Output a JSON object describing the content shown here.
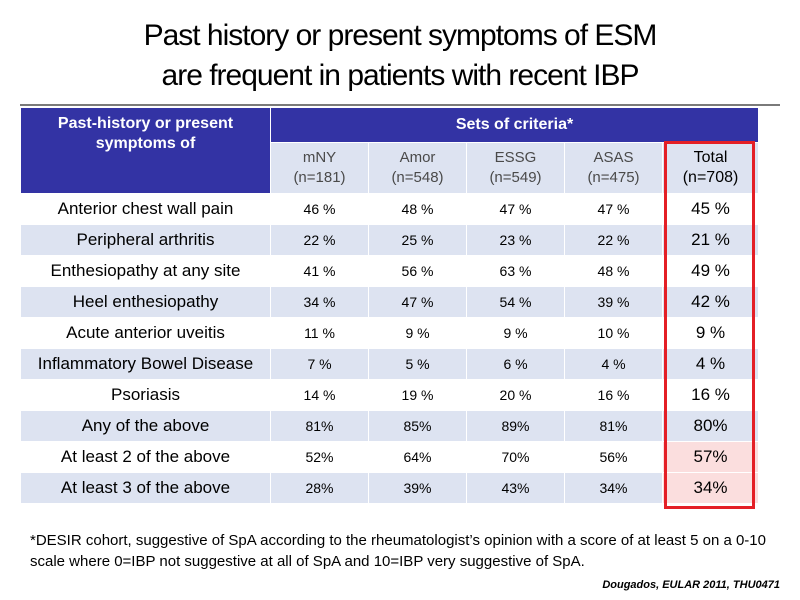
{
  "title": {
    "line1": "Past history or present symptoms of ESM",
    "line2": "are frequent in patients with recent IBP"
  },
  "table": {
    "row_header_label": "Past-history or present symptoms of",
    "group_header": "Sets of criteria*",
    "columns": [
      {
        "name": "mNY",
        "n": "(n=181)"
      },
      {
        "name": "Amor",
        "n": "(n=548)"
      },
      {
        "name": "ESSG",
        "n": "(n=549)"
      },
      {
        "name": "ASAS",
        "n": "(n=475)"
      },
      {
        "name": "Total",
        "n": "(n=708)"
      }
    ],
    "rows": [
      {
        "label": "Anterior chest wall pain",
        "values": [
          "46 %",
          "48 %",
          "47 %",
          "47 %",
          "45 %"
        ]
      },
      {
        "label": "Peripheral arthritis",
        "values": [
          "22 %",
          "25 %",
          "23 %",
          "22 %",
          "21 %"
        ]
      },
      {
        "label": "Enthesiopathy at any site",
        "values": [
          "41 %",
          "56 %",
          "63 %",
          "48 %",
          "49 %"
        ]
      },
      {
        "label": "Heel enthesiopathy",
        "values": [
          "34 %",
          "47 %",
          "54 %",
          "39 %",
          "42 %"
        ]
      },
      {
        "label": "Acute anterior uveitis",
        "values": [
          "11 %",
          "9 %",
          "9 %",
          "10 %",
          "9 %"
        ]
      },
      {
        "label": "Inflammatory Bowel Disease",
        "values": [
          "7 %",
          "5 %",
          "6 %",
          "4 %",
          "4 %"
        ]
      },
      {
        "label": "Psoriasis",
        "values": [
          "14 %",
          "19 %",
          "20 %",
          "16 %",
          "16 %"
        ]
      },
      {
        "label": "Any of the above",
        "values": [
          "81%",
          "85%",
          "89%",
          "81%",
          "80%"
        ]
      },
      {
        "label": "At least 2 of the above",
        "values": [
          "52%",
          "64%",
          "70%",
          "56%",
          "57%"
        ]
      },
      {
        "label": "At least 3 of the above",
        "values": [
          "28%",
          "39%",
          "43%",
          "34%",
          "34%"
        ]
      }
    ]
  },
  "footnote": "*DESIR cohort, suggestive of SpA according to the rheumatologist’s opinion with a score of at least 5 on a 0-10 scale where 0=IBP not suggestive at all of SpA and 10=IBP very suggestive of SpA.",
  "source": "Dougados, EULAR 2011, THU0471",
  "colors": {
    "header_bg": "#3333a4",
    "stripe_bg": "#dde3f1",
    "highlight_border": "#e41f26",
    "highlight_fill": "#fbdede"
  }
}
